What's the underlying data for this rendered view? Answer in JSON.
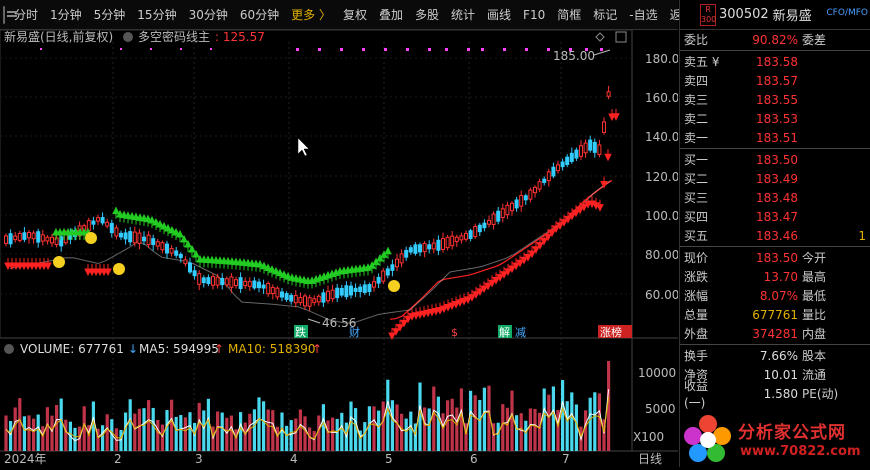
{
  "toolbar": {
    "items": [
      "分时",
      "1分钟",
      "5分钟",
      "15分钟",
      "30分钟",
      "60分钟",
      "更多 〉",
      "复权",
      "叠加",
      "多股",
      "统计",
      "画线",
      "F10",
      "简框",
      "标记",
      "-自选",
      "返回"
    ]
  },
  "chart": {
    "legend_prefix": "新易盛(日线,前复权)",
    "indicator_name": "多空密码线主",
    "indicator_value": ": 125.57",
    "high_label": "185.00",
    "low_label": "46.56",
    "y_ticks": [
      "180.0",
      "160.0",
      "140.0",
      "120.0",
      "100.0",
      "80.00",
      "60.00"
    ],
    "events": [
      "跌",
      "财",
      "$",
      "解",
      "减",
      "涨榜"
    ],
    "volume_legend": {
      "vol": "VOLUME: 677761",
      "ma5": "MA5: 594995",
      "ma10": "MA10: 518390"
    },
    "vol_ticks": [
      "10000",
      "5000"
    ],
    "vol_unit": "X100",
    "x_labels": [
      "2024年",
      "2",
      "3",
      "4",
      "5",
      "6",
      "7"
    ],
    "bottom_right": "日线",
    "colors": {
      "up": "#ff3333",
      "down": "#33ccff",
      "green": "#22cc22",
      "red": "#ff2222",
      "magenta": "#ff44ff"
    }
  },
  "panel": {
    "badge": "R 300",
    "code": "300502",
    "name": "新易盛",
    "cfo": "CFO/MFO",
    "weibi_label": "委比",
    "weibi_value": "90.82%",
    "weicha_label": "委差",
    "asks": [
      {
        "label": "卖五 ¥",
        "price": "183.58"
      },
      {
        "label": "卖四",
        "price": "183.57"
      },
      {
        "label": "卖三",
        "price": "183.55"
      },
      {
        "label": "卖二",
        "price": "183.53"
      },
      {
        "label": "卖一",
        "price": "183.51"
      }
    ],
    "bids": [
      {
        "label": "买一",
        "price": "183.50"
      },
      {
        "label": "买二",
        "price": "183.49"
      },
      {
        "label": "买三",
        "price": "183.48"
      },
      {
        "label": "买四",
        "price": "183.47"
      },
      {
        "label": "买五",
        "price": "183.46",
        "extra": "1"
      }
    ],
    "quote": [
      {
        "l1": "现价",
        "v1": "183.50",
        "l2": "今开"
      },
      {
        "l1": "涨跌",
        "v1": "13.70",
        "l2": "最高"
      },
      {
        "l1": "涨幅",
        "v1": "8.07%",
        "l2": "最低"
      },
      {
        "l1": "总量",
        "v1": "677761",
        "l2": "量比"
      },
      {
        "l1": "外盘",
        "v1": "374281",
        "l2": "内盘"
      }
    ],
    "stats": [
      {
        "l1": "换手",
        "v1": "7.66%",
        "l2": "股本"
      },
      {
        "l1": "净资",
        "v1": "10.01",
        "l2": "流通"
      },
      {
        "l1": "收益(一)",
        "v1": "1.580",
        "l2": "PE(动)"
      }
    ]
  },
  "logo": {
    "text": "分析家公式网",
    "url": "www.70822.com"
  }
}
